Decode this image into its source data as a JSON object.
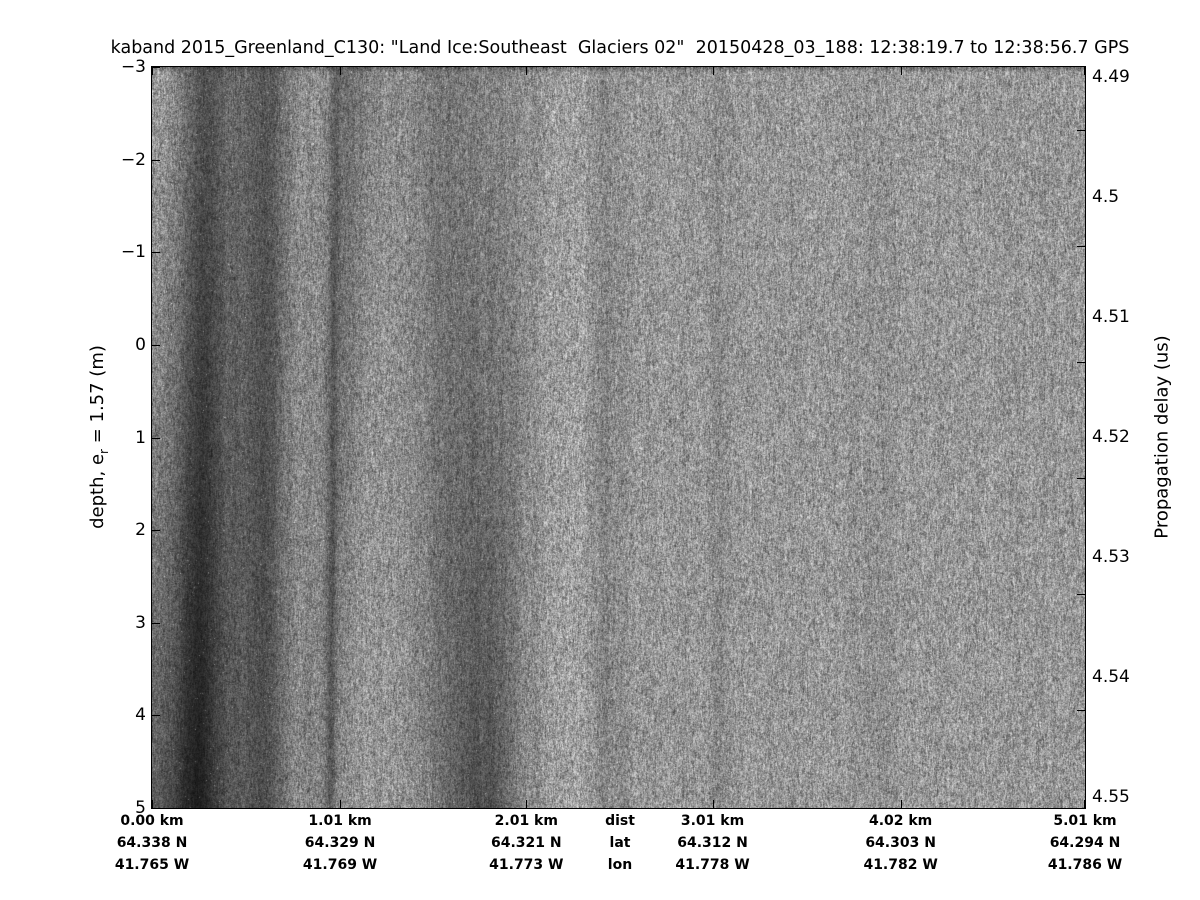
{
  "figure": {
    "title": "kaband 2015_Greenland_C130: \"Land Ice:Southeast  Glaciers 02\"  20150428_03_188: 12:38:19.7 to 12:38:56.7 GPS",
    "background_color": "#ffffff",
    "ink_color": "#000000"
  },
  "y_axis_left": {
    "label_prefix": "depth, e",
    "label_sub": "r",
    "label_suffix": " = 1.57 (m)",
    "ticks": [
      "−3",
      "−2",
      "−1",
      "0",
      "1",
      "2",
      "3",
      "4",
      "5"
    ]
  },
  "y_axis_right": {
    "label": "Propagation delay (us)",
    "ticks": [
      "4.49",
      "4.5",
      "4.51",
      "4.52",
      "4.53",
      "4.54",
      "4.55"
    ]
  },
  "x_axis": {
    "legend": {
      "dist": "dist",
      "lat": "lat",
      "lon": "lon"
    },
    "columns": [
      {
        "km": 0.0,
        "dist": "0.00 km",
        "lat": "64.338 N",
        "lon": "41.765 W"
      },
      {
        "km": 1.01,
        "dist": "1.01 km",
        "lat": "64.329 N",
        "lon": "41.769 W"
      },
      {
        "km": 2.01,
        "dist": "2.01 km",
        "lat": "64.321 N",
        "lon": "41.773 W"
      },
      {
        "km": 3.01,
        "dist": "3.01 km",
        "lat": "64.312 N",
        "lon": "41.778 W"
      },
      {
        "km": 4.02,
        "dist": "4.02 km",
        "lat": "64.303 N",
        "lon": "41.782 W"
      },
      {
        "km": 5.01,
        "dist": "5.01 km",
        "lat": "64.294 N",
        "lon": "41.786 W"
      }
    ]
  },
  "chart_data": {
    "type": "heatmap",
    "title": "kaband 2015_Greenland_C130: \"Land Ice:Southeast  Glaciers 02\"  20150428_03_188: 12:38:19.7 to 12:38:56.7 GPS",
    "ylabel_left": "depth, e_r = 1.57 (m)",
    "ylabel_right": "Propagation delay (us)",
    "xlabel_rows": [
      "dist",
      "lat",
      "lon"
    ],
    "xlim_km": [
      0,
      5.01
    ],
    "ylim_depth_m": [
      -3,
      5
    ],
    "delay_range_us": [
      4.49,
      4.55
    ],
    "x_ticks_km": [
      0.0,
      1.01,
      2.01,
      3.01,
      4.02,
      5.01
    ],
    "lat_ticks_N": [
      64.338,
      64.329,
      64.321,
      64.312,
      64.303,
      64.294
    ],
    "lon_ticks_W": [
      41.765,
      41.769,
      41.773,
      41.778,
      41.782,
      41.786
    ],
    "depth_ticks_m": [
      -3,
      -2,
      -1,
      0,
      1,
      2,
      3,
      4,
      5
    ],
    "delay_ticks_us": [
      4.49,
      4.5,
      4.51,
      4.52,
      4.53,
      4.54,
      4.55
    ],
    "colormap": "gray",
    "grid": false,
    "description": "Ka-band radar echogram: vertically streaked grayscale speckle; dark layered return bands near 0.1-0.7 km, ~1.0 km, 1.45-2.0 km, faint lines near 2.45 km and 3.04 km; near-uniform speckle beyond 3 km.",
    "noise_bands": [
      {
        "c": 0.45,
        "s": 0.3,
        "k0": 0.28,
        "k1": 0.5,
        "d": -0.2
      },
      {
        "c": 0.28,
        "s": 0.07,
        "k0": 0.22,
        "k1": 0.3,
        "d": -0.04
      },
      {
        "c": 0.63,
        "s": 0.07,
        "k0": 0.18,
        "k1": 0.26,
        "d": -0.02
      },
      {
        "c": 0.04,
        "s": 0.1,
        "k0": -0.1,
        "k1": 0.05,
        "d": 0
      },
      {
        "c": 0.8,
        "s": 0.1,
        "k0": -0.08,
        "k1": -0.04,
        "d": -0.15
      },
      {
        "c": 0.985,
        "s": 0.02,
        "k0": 0.22,
        "k1": 0.26,
        "d": -0.03
      },
      {
        "c": 1.08,
        "s": 0.09,
        "k0": 0.22,
        "k1": 0.1,
        "d": -0.15
      },
      {
        "c": 1.6,
        "s": 0.17,
        "k0": 0.2,
        "k1": 0.38,
        "d": 0.1
      },
      {
        "c": 1.95,
        "s": 0.1,
        "k0": 0.06,
        "k1": 0.16,
        "d": -0.12
      },
      {
        "c": 2.22,
        "s": 0.08,
        "k0": -0.04,
        "k1": -0.06,
        "d": 0
      },
      {
        "c": 2.43,
        "s": 0.04,
        "k0": 0.1,
        "k1": 0.13,
        "d": 0.01
      },
      {
        "c": 2.52,
        "s": 0.025,
        "k0": 0.06,
        "k1": 0.09,
        "d": 0.01
      },
      {
        "c": 3.04,
        "s": 0.03,
        "k0": 0.05,
        "k1": 0.1,
        "d": 0
      },
      {
        "c": 3.9,
        "s": 0.06,
        "k0": 0.02,
        "k1": 0.07,
        "d": 0
      }
    ]
  }
}
